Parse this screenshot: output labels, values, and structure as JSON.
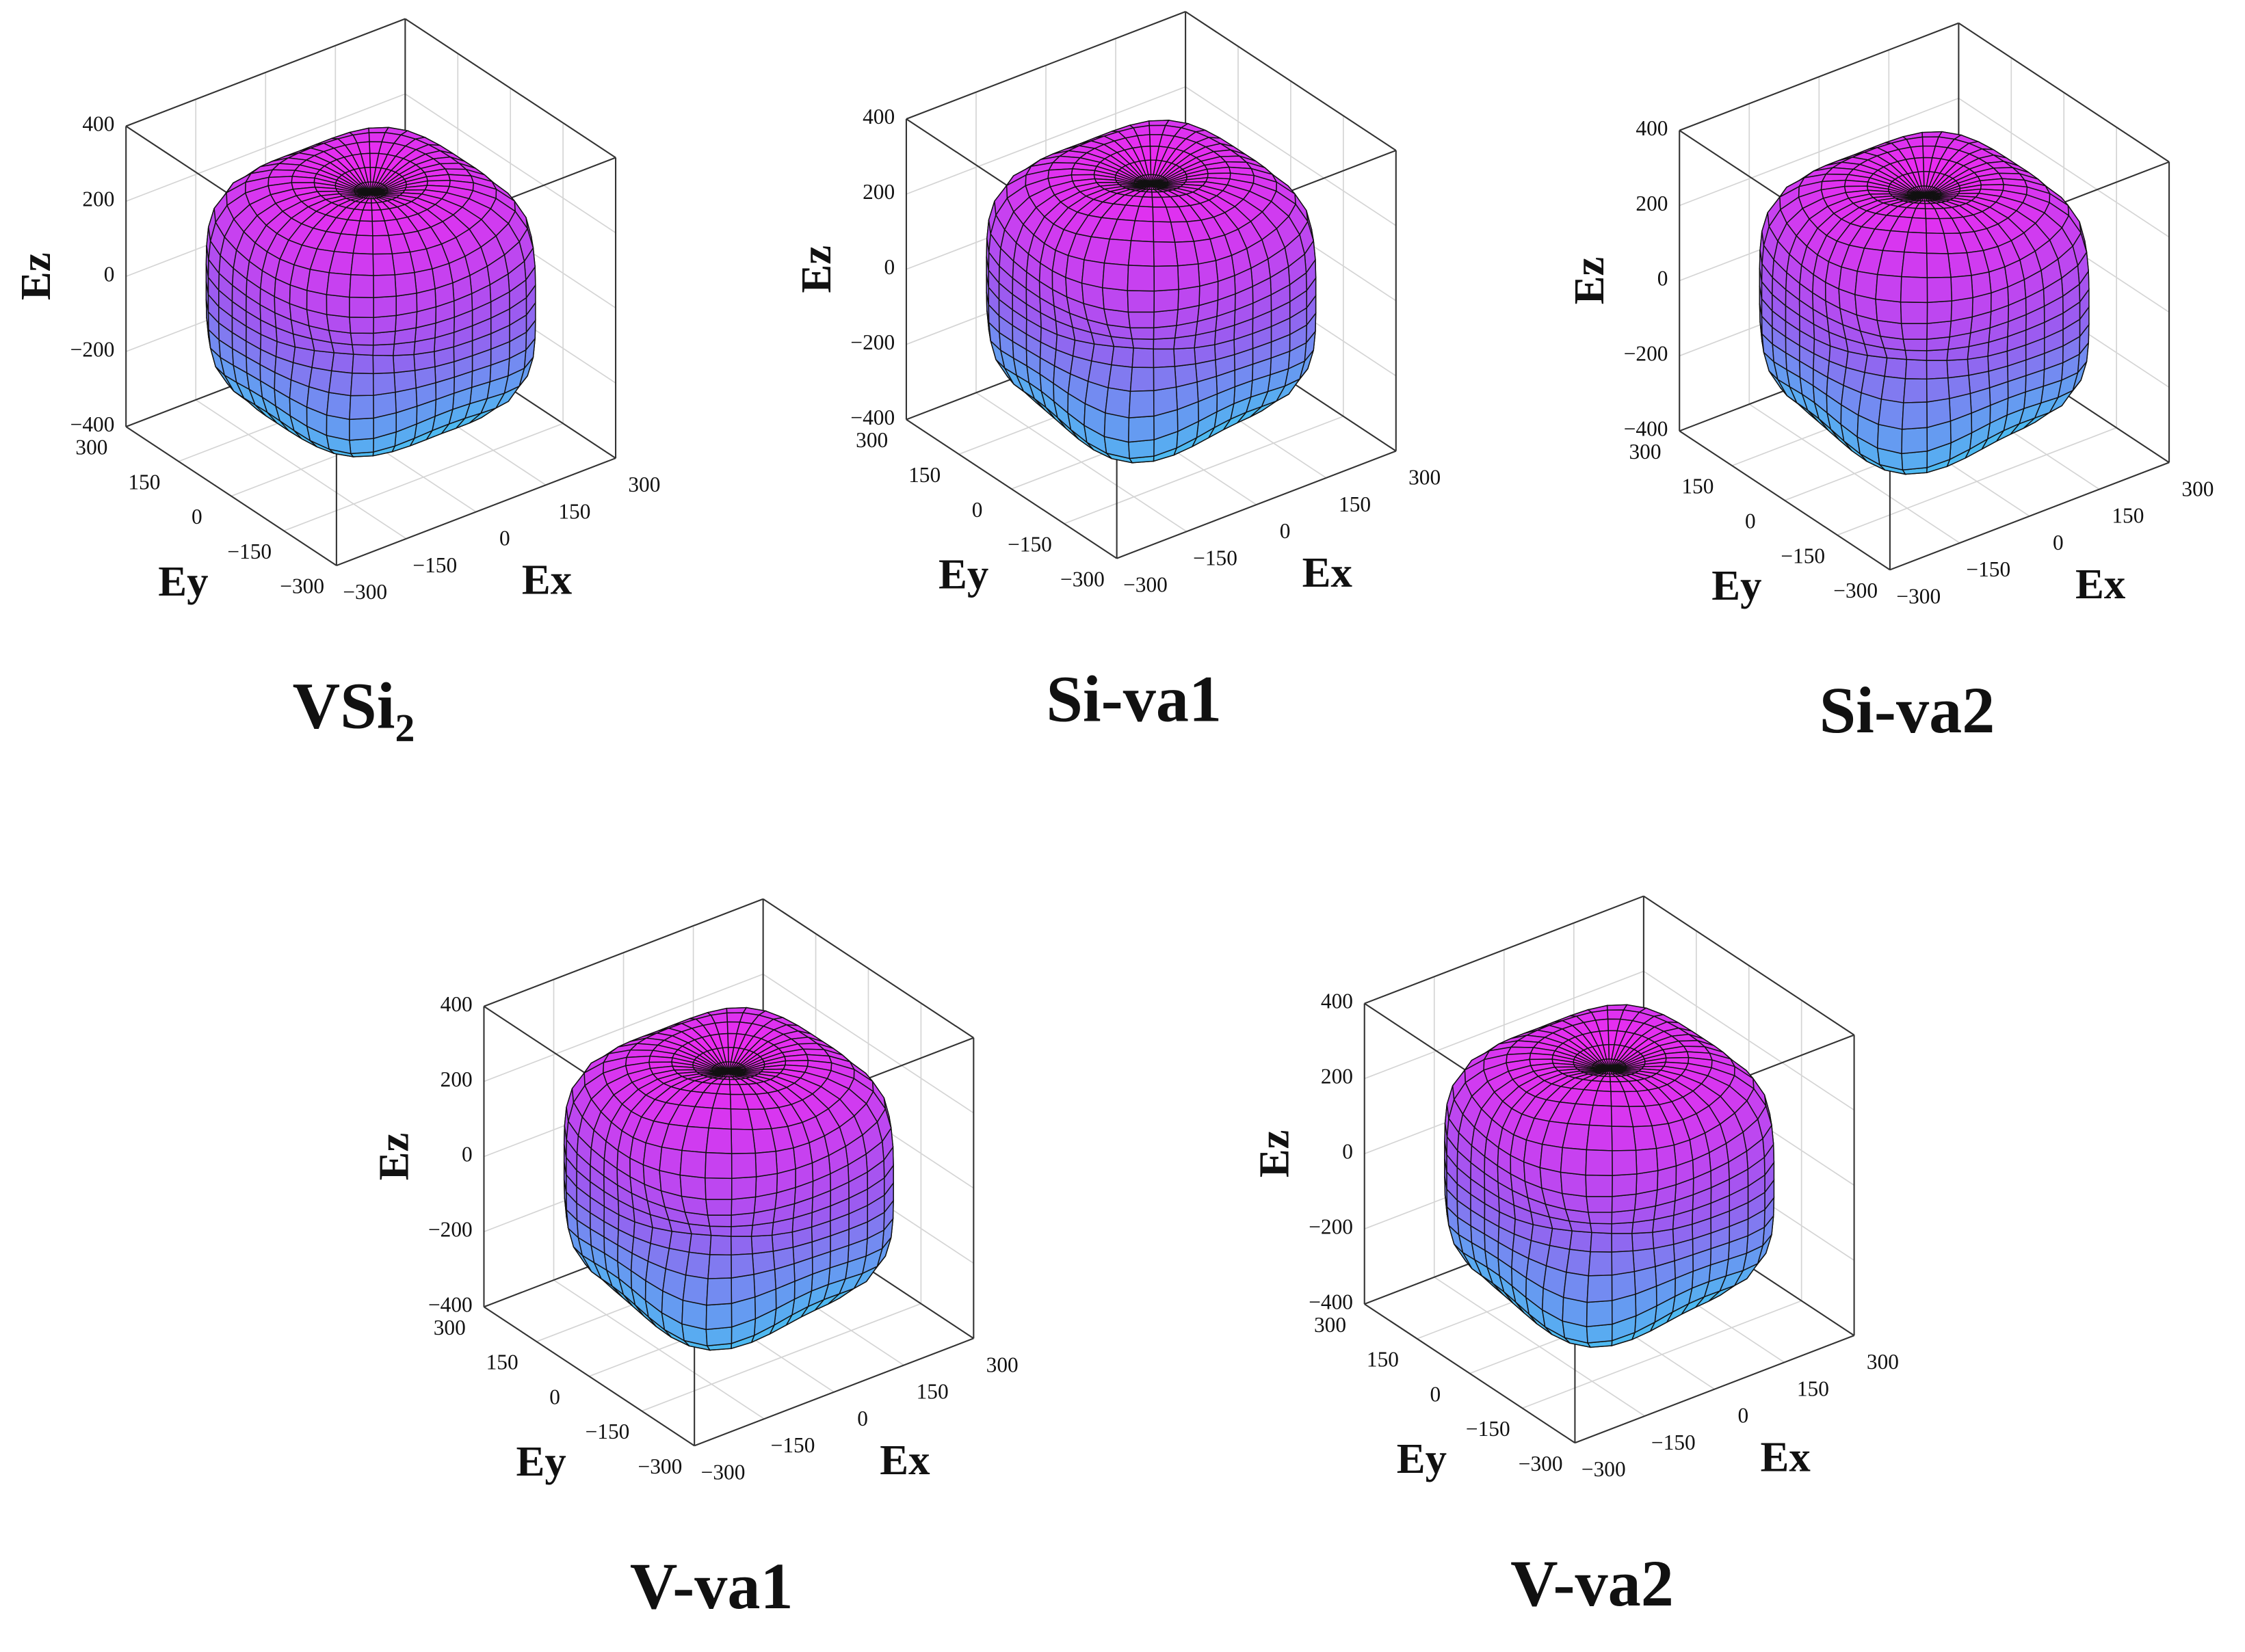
{
  "chart_data": [
    {
      "type": "surface3d",
      "title": "VSi₂",
      "xlabel": "Ex",
      "ylabel": "Ey",
      "zlabel": "Ez",
      "xlim": [
        -300,
        300
      ],
      "ylim": [
        -300,
        300
      ],
      "zlim": [
        -400,
        400
      ],
      "xticks": [
        {
          "value": -300,
          "label": "−300"
        },
        {
          "value": -150,
          "label": "−150"
        },
        0,
        150,
        300
      ],
      "yticks": [
        {
          "value": -300,
          "label": "−300"
        },
        {
          "value": -150,
          "label": "−150"
        },
        0,
        150,
        300
      ],
      "zticks": [
        {
          "value": -400,
          "label": "−400"
        },
        {
          "value": -200,
          "label": "−200"
        },
        0,
        200,
        400
      ],
      "grid": true
    },
    {
      "type": "surface3d",
      "title": "Si-va1",
      "xlabel": "Ex",
      "ylabel": "Ey",
      "zlabel": "Ez",
      "xlim": [
        -300,
        300
      ],
      "ylim": [
        -300,
        300
      ],
      "zlim": [
        -400,
        400
      ],
      "xticks": [
        {
          "value": -300,
          "label": "−300"
        },
        {
          "value": -150,
          "label": "−150"
        },
        0,
        150,
        300
      ],
      "yticks": [
        {
          "value": -300,
          "label": "−300"
        },
        {
          "value": -150,
          "label": "−150"
        },
        0,
        150,
        300
      ],
      "zticks": [
        {
          "value": -400,
          "label": "−400"
        },
        {
          "value": -200,
          "label": "−200"
        },
        0,
        200,
        400
      ],
      "grid": true
    },
    {
      "type": "surface3d",
      "title": "Si-va2",
      "xlabel": "Ex",
      "ylabel": "Ey",
      "zlabel": "Ez",
      "xlim": [
        -300,
        300
      ],
      "ylim": [
        -300,
        300
      ],
      "zlim": [
        -400,
        400
      ],
      "xticks": [
        {
          "value": -300,
          "label": "−300"
        },
        {
          "value": -150,
          "label": "−150"
        },
        0,
        150,
        300
      ],
      "yticks": [
        {
          "value": -300,
          "label": "−300"
        },
        {
          "value": -150,
          "label": "−150"
        },
        0,
        150,
        300
      ],
      "zticks": [
        {
          "value": -400,
          "label": "−400"
        },
        {
          "value": -200,
          "label": "−200"
        },
        0,
        200,
        400
      ],
      "grid": true
    },
    {
      "type": "surface3d",
      "title": "V-va1",
      "xlabel": "Ex",
      "ylabel": "Ey",
      "zlabel": "Ez",
      "xlim": [
        -300,
        300
      ],
      "ylim": [
        -300,
        300
      ],
      "zlim": [
        -400,
        400
      ],
      "xticks": [
        {
          "value": -300,
          "label": "−300"
        },
        {
          "value": -150,
          "label": "−150"
        },
        0,
        150,
        300
      ],
      "yticks": [
        {
          "value": -300,
          "label": "−300"
        },
        {
          "value": -150,
          "label": "−150"
        },
        0,
        150,
        300
      ],
      "zticks": [
        {
          "value": -400,
          "label": "−400"
        },
        {
          "value": -200,
          "label": "−200"
        },
        0,
        200,
        400
      ],
      "grid": true
    },
    {
      "type": "surface3d",
      "title": "V-va2",
      "xlabel": "Ex",
      "ylabel": "Ey",
      "zlabel": "Ez",
      "xlim": [
        -300,
        300
      ],
      "ylim": [
        -300,
        300
      ],
      "zlim": [
        -400,
        400
      ],
      "xticks": [
        {
          "value": -300,
          "label": "−300"
        },
        {
          "value": -150,
          "label": "−150"
        },
        0,
        150,
        300
      ],
      "yticks": [
        {
          "value": -300,
          "label": "−300"
        },
        {
          "value": -150,
          "label": "−150"
        },
        0,
        150,
        300
      ],
      "zticks": [
        {
          "value": -400,
          "label": "−400"
        },
        {
          "value": -200,
          "label": "−200"
        },
        0,
        200,
        400
      ],
      "grid": true
    }
  ]
}
